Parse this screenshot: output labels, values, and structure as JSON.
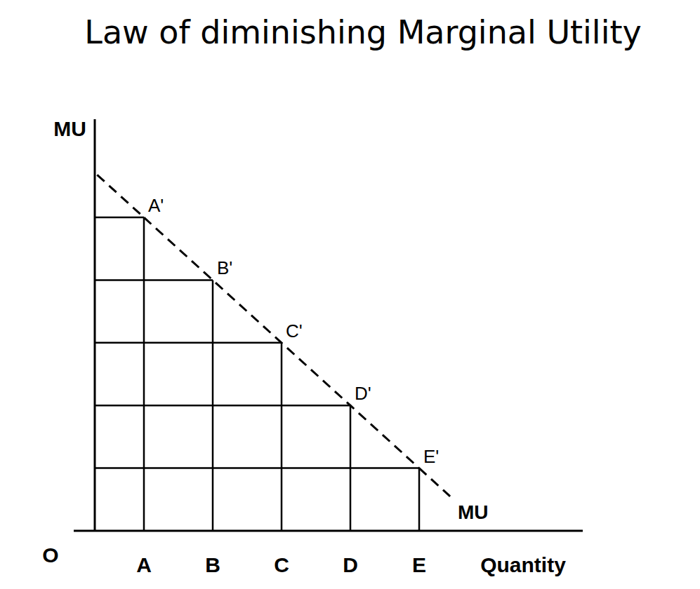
{
  "chart_data": {
    "type": "line",
    "title": "Law of diminishing Marginal Utility",
    "x_label": "Quantity",
    "y_label": "MU",
    "origin_label": "O",
    "categories": [
      "A",
      "B",
      "C",
      "D",
      "E"
    ],
    "series": [
      {
        "name": "MU",
        "color": "#000000",
        "line_style": "dashed",
        "values": [
          5,
          4,
          3,
          2,
          1
        ],
        "point_labels": [
          "A'",
          "B'",
          "C'",
          "D'",
          "E'"
        ]
      }
    ],
    "ylim": [
      0,
      6.5
    ],
    "tick_labels": "x"
  }
}
